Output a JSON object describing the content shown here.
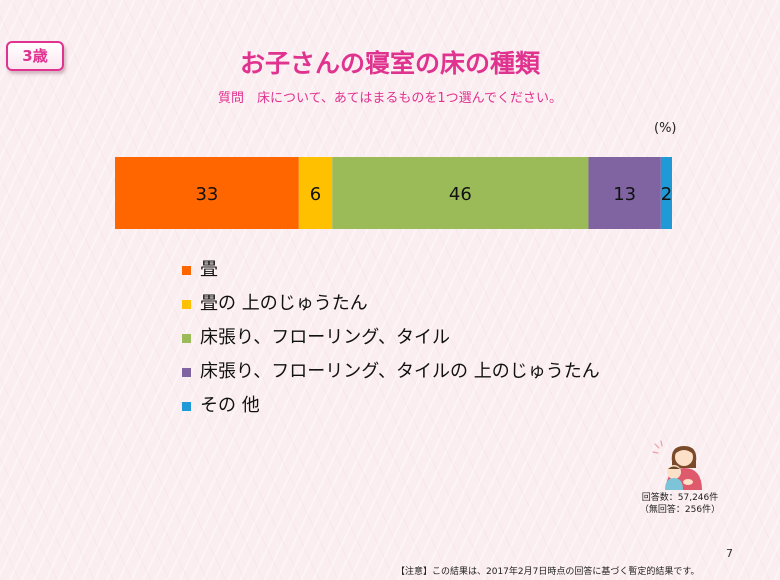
{
  "badge": "3歳",
  "title": "お子さんの寝室の床の種類",
  "question": "質問　床について、あてはまるものを1つ選んでください。",
  "chart_data": {
    "type": "bar",
    "stacked": true,
    "orientation": "horizontal",
    "unit_label": "(%)",
    "xlim": [
      0,
      100
    ],
    "series": [
      {
        "name": "畳",
        "value": 33,
        "label": "33",
        "color": "#ff6600"
      },
      {
        "name": "畳の 上のじゅうたん",
        "value": 6,
        "label": "6",
        "color": "#ffc000"
      },
      {
        "name": "床張り、フローリング、タイル",
        "value": 46,
        "label": "46",
        "color": "#9bbb59"
      },
      {
        "name": "床張り、フローリング、タイルの 上のじゅうたん",
        "value": 13,
        "label": "13",
        "color": "#8064a2"
      },
      {
        "name": "その 他",
        "value": 2,
        "label": "2",
        "color": "#1f9ad6"
      }
    ]
  },
  "footer": {
    "responses": "回答数：57,246件",
    "no_response": "（無回答：256件）",
    "page_number": "7",
    "note": "【注意】この結果は、2017年2月7日時点の回答に基づく暫定的結果です。"
  },
  "illustration": {
    "icon": "mother-and-child-icon"
  }
}
